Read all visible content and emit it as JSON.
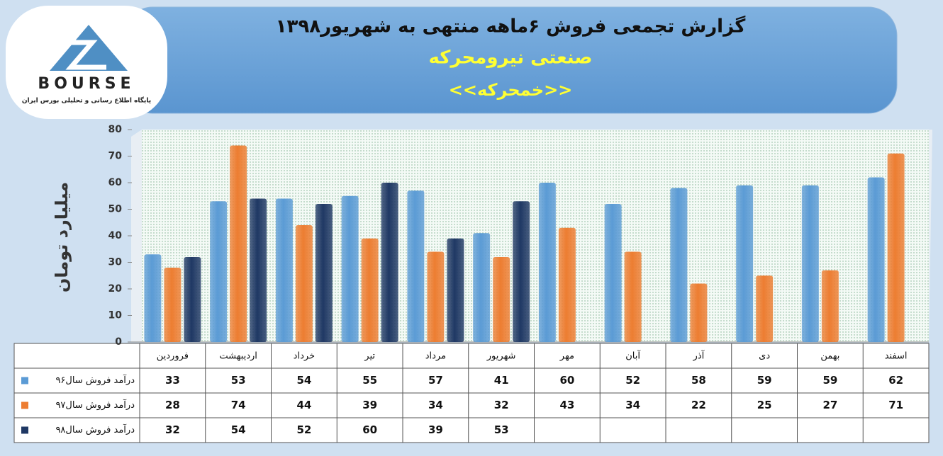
{
  "chart_data": {
    "type": "bar",
    "title": "گزارش تجمعی فروش ۶ماهه منتهی به شهریور۱۳۹۸",
    "subtitle": "صنعتی نیرومحرکه",
    "symbol": "<<خمحرکه>>",
    "logo": "BOURSE",
    "logo_caption": "پایگاه اطلاع رسانی و تحلیلی بورس ایران",
    "y_label": "میلیارد تومان",
    "categories": [
      "فروردین",
      "اردیبهشت",
      "خرداد",
      "تیر",
      "مرداد",
      "شهریور",
      "مهر",
      "آبان",
      "آذر",
      "دی",
      "بهمن",
      "اسفند"
    ],
    "series": [
      {
        "name": "درآمد فروش سال۹۶",
        "color": "#5b9bd5",
        "values": [
          33,
          53,
          54,
          55,
          57,
          41,
          60,
          52,
          58,
          59,
          59,
          62
        ]
      },
      {
        "name": "درآمد فروش سال۹۷",
        "color": "#ed7d31",
        "values": [
          28,
          74,
          44,
          39,
          34,
          32,
          43,
          34,
          22,
          25,
          27,
          71
        ]
      },
      {
        "name": "درآمد فروش سال۹۸",
        "color": "#1f3864",
        "values": [
          32,
          54,
          52,
          60,
          39,
          53,
          null,
          null,
          null,
          null,
          null,
          null
        ]
      }
    ],
    "ylim": [
      0,
      80
    ],
    "yticks": [
      0,
      10,
      20,
      30,
      40,
      50,
      60,
      70,
      80
    ],
    "grid": false
  }
}
